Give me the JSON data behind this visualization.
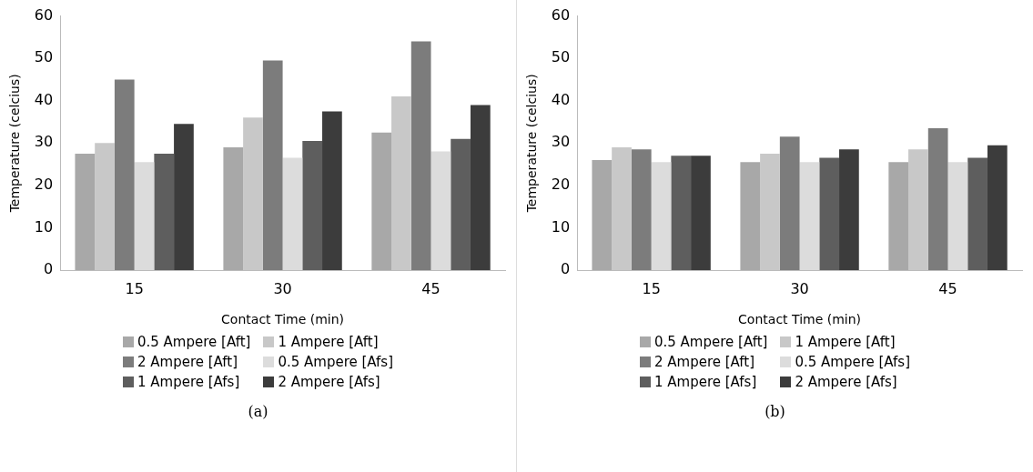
{
  "chart_data": [
    {
      "type": "bar",
      "xlabel": "Contact Time (min)",
      "ylabel": "Temperature (celcius)",
      "categories": [
        "15",
        "30",
        "45"
      ],
      "ylim": [
        0,
        60
      ],
      "yticks": [
        0,
        10,
        20,
        30,
        40,
        50,
        60
      ],
      "grid": false,
      "legend": "bottom",
      "annotations": [
        "(a)"
      ],
      "series": [
        {
          "name": "0.5 Ampere [Aft]",
          "color": "#a8a8a8",
          "values": [
            27.5,
            29,
            32.5
          ]
        },
        {
          "name": "1 Ampere [Aft]",
          "color": "#c8c8c8",
          "values": [
            30,
            36,
            41
          ]
        },
        {
          "name": "2 Ampere [Aft]",
          "color": "#7c7c7c",
          "values": [
            45,
            49.5,
            54
          ]
        },
        {
          "name": "0.5 Ampere [Afs]",
          "color": "#dcdcdc",
          "values": [
            25.5,
            26.5,
            28
          ]
        },
        {
          "name": "1 Ampere [Afs]",
          "color": "#5e5e5e",
          "values": [
            27.5,
            30.5,
            31
          ]
        },
        {
          "name": "2 Ampere [Afs]",
          "color": "#3c3c3c",
          "values": [
            34.5,
            37.5,
            39
          ]
        }
      ]
    },
    {
      "type": "bar",
      "xlabel": "Contact Time (min)",
      "ylabel": "Temperature (celcius)",
      "categories": [
        "15",
        "30",
        "45"
      ],
      "ylim": [
        0,
        60
      ],
      "yticks": [
        0,
        10,
        20,
        30,
        40,
        50,
        60
      ],
      "grid": false,
      "legend": "bottom",
      "annotations": [
        "(b)"
      ],
      "series": [
        {
          "name": "0.5 Ampere [Aft]",
          "color": "#a8a8a8",
          "values": [
            26,
            25.5,
            25.5
          ]
        },
        {
          "name": "1 Ampere [Aft]",
          "color": "#c8c8c8",
          "values": [
            29,
            27.5,
            28.5
          ]
        },
        {
          "name": "2 Ampere [Aft]",
          "color": "#7c7c7c",
          "values": [
            28.5,
            31.5,
            33.5
          ]
        },
        {
          "name": "0.5 Ampere [Afs]",
          "color": "#dcdcdc",
          "values": [
            25.5,
            25.5,
            25.5
          ]
        },
        {
          "name": "1 Ampere [Afs]",
          "color": "#5e5e5e",
          "values": [
            27,
            26.5,
            26.5
          ]
        },
        {
          "name": "2 Ampere [Afs]",
          "color": "#3c3c3c",
          "values": [
            27,
            28.5,
            29.5
          ]
        }
      ]
    }
  ]
}
